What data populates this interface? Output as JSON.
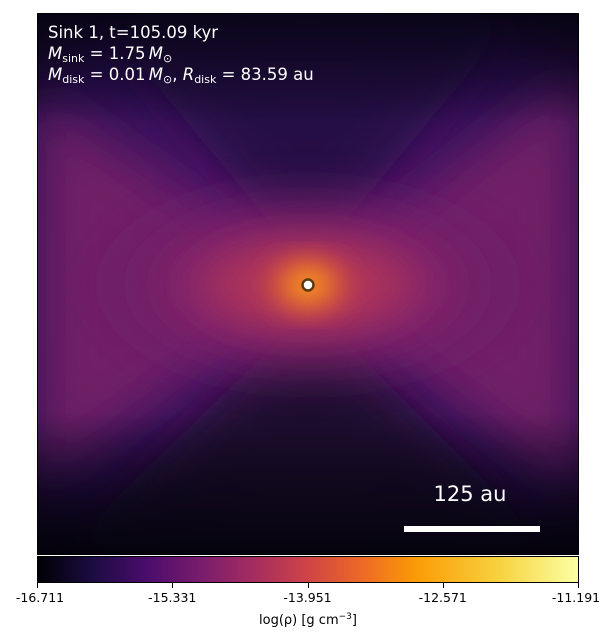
{
  "info": {
    "sink_label": "Sink 1, t=105.09 kyr",
    "m_sink_value": "= 1.75",
    "m_disk_value": "= 0.01",
    "r_disk_value": "= 83.59 au"
  },
  "scalebar": {
    "label": "125 au"
  },
  "colorbar": {
    "colormap": "inferno",
    "min": -16.711,
    "max": -11.191,
    "tick_labels": [
      "-16.711",
      "-15.331",
      "-13.951",
      "-12.571",
      "-11.191"
    ],
    "label_text": "log(ρ) [g cm",
    "label_exponent": "−3",
    "label_close": "]"
  },
  "colors": {
    "overlay_text": "#ffffff",
    "sink_marker_fill": "#ffffff",
    "sink_marker_edge": "#5a3a10"
  }
}
